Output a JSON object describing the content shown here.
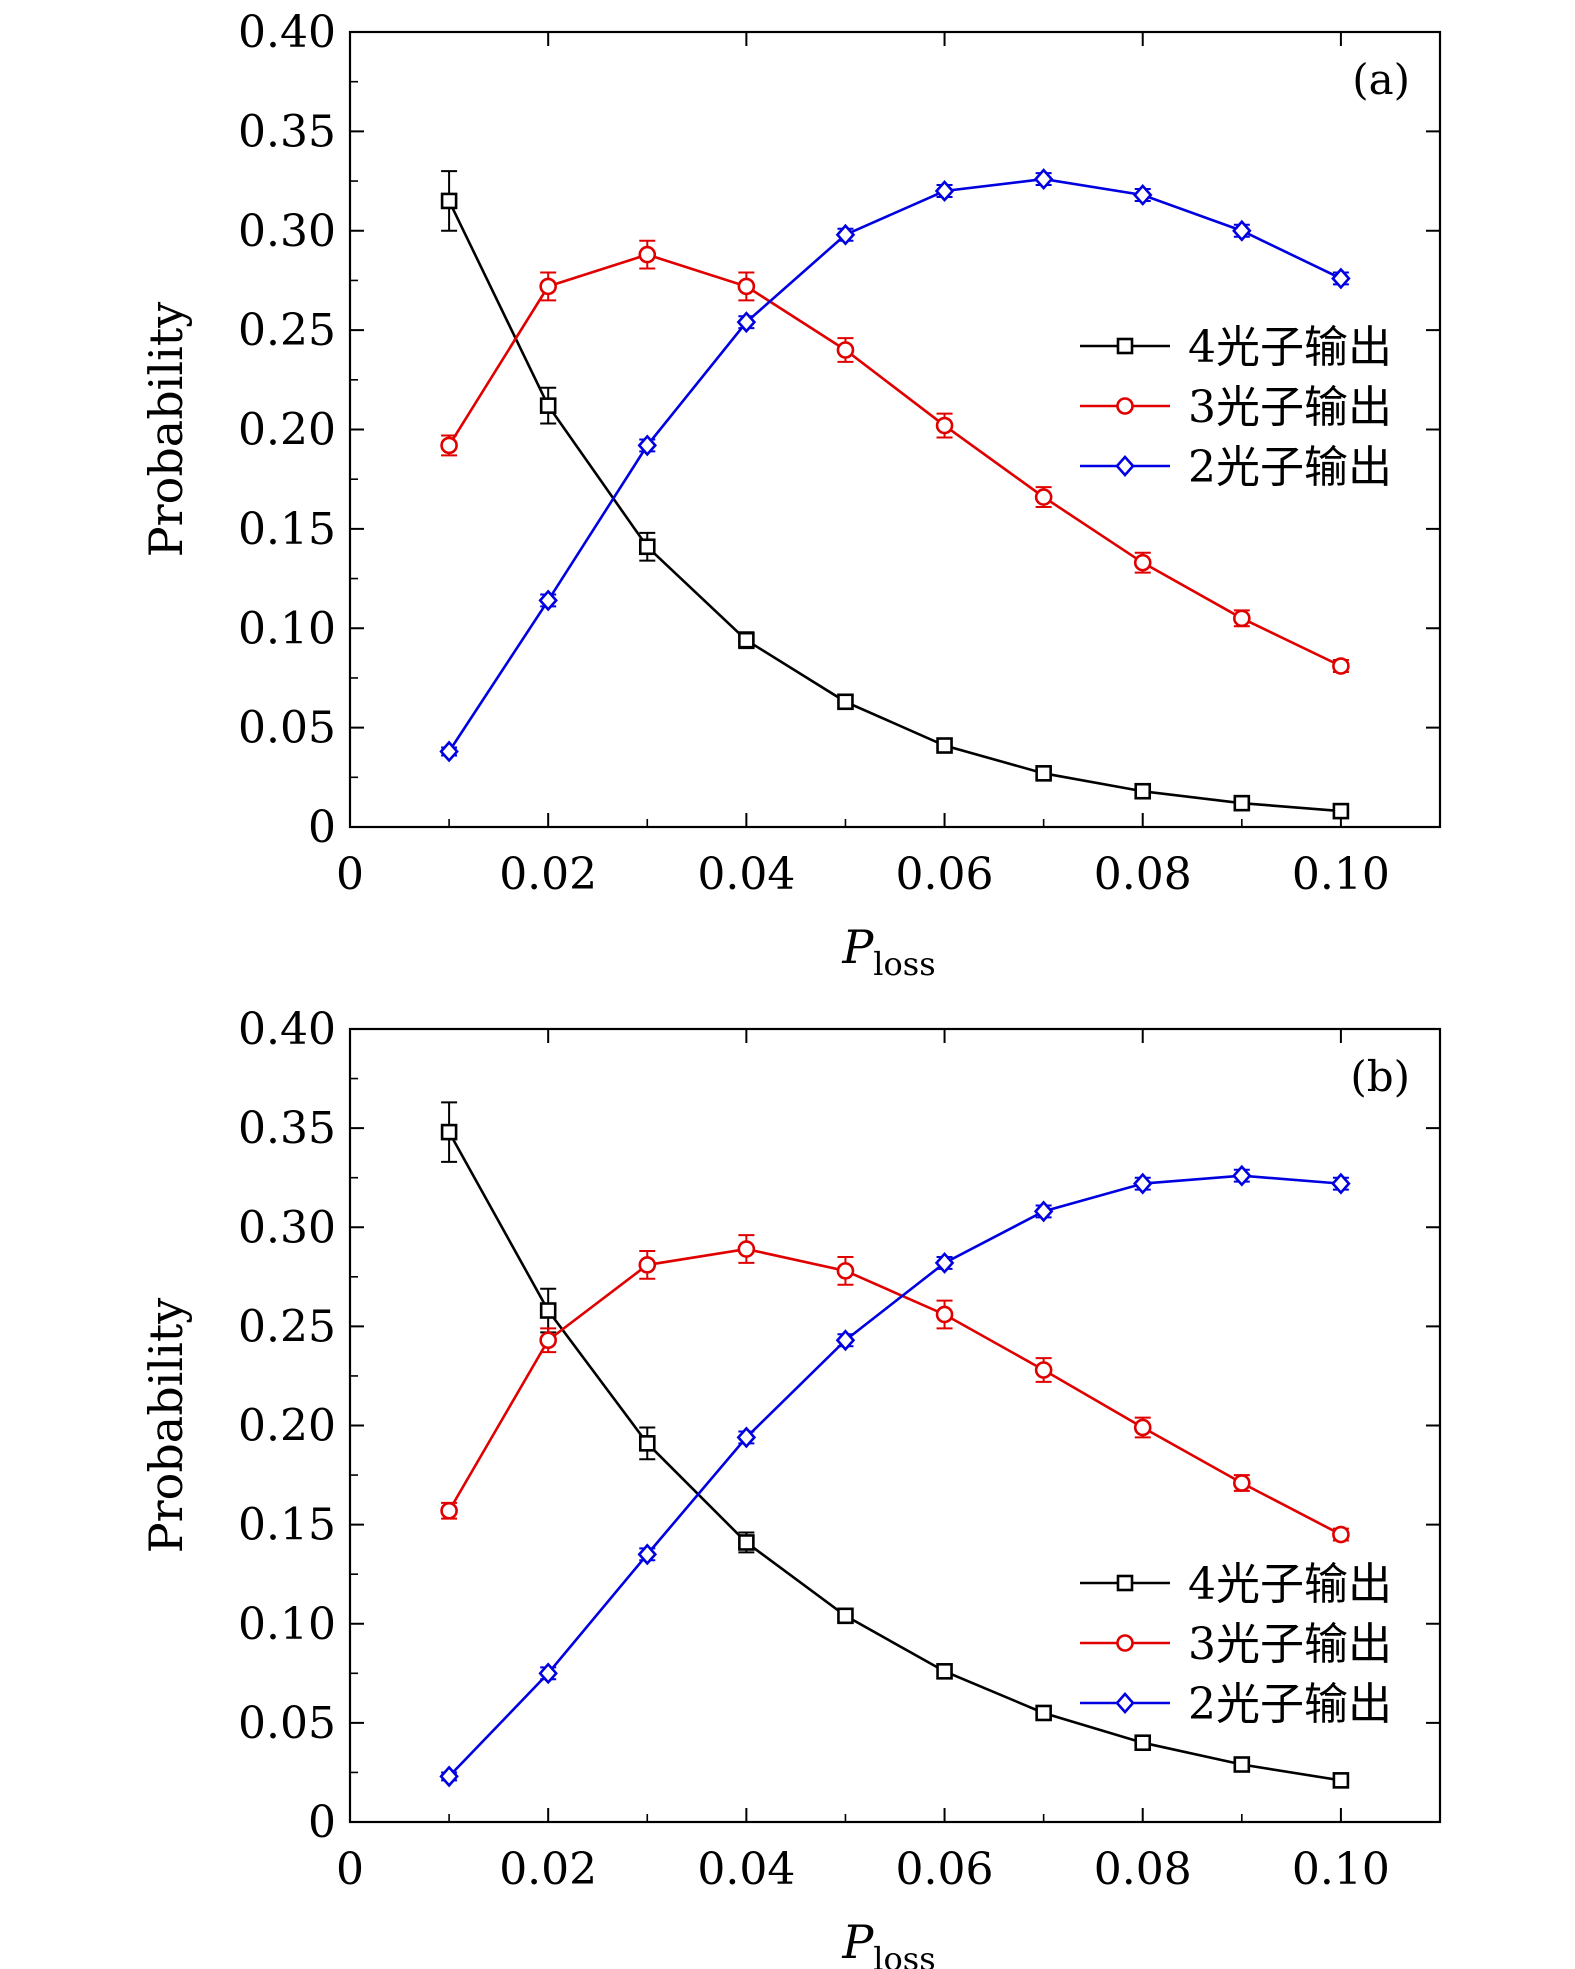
{
  "chart_data": [
    {
      "type": "line",
      "panel_label": "(a)",
      "xlabel_main": "P",
      "xlabel_sub": "loss",
      "ylabel": "Probability",
      "xlim": [
        0,
        0.11
      ],
      "ylim": [
        0,
        0.4
      ],
      "x_ticks": [
        0,
        0.02,
        0.04,
        0.06,
        0.08,
        0.1
      ],
      "x_tick_labels": [
        "0",
        "0.02",
        "0.04",
        "0.06",
        "0.08",
        "0.10"
      ],
      "y_ticks": [
        0,
        0.05,
        0.1,
        0.15,
        0.2,
        0.25,
        0.3,
        0.35,
        0.4
      ],
      "y_tick_labels": [
        "0",
        "0.05",
        "0.10",
        "0.15",
        "0.20",
        "0.25",
        "0.30",
        "0.35",
        "0.40"
      ],
      "legend_position": "right-middle",
      "x": [
        0.01,
        0.02,
        0.03,
        0.04,
        0.05,
        0.06,
        0.07,
        0.08,
        0.09,
        0.1
      ],
      "series": [
        {
          "name": "4光子输出",
          "color": "#000000",
          "marker": "square",
          "values": [
            0.315,
            0.212,
            0.141,
            0.094,
            0.063,
            0.041,
            0.027,
            0.018,
            0.012,
            0.008
          ],
          "errors": [
            0.015,
            0.009,
            0.007,
            0.004,
            0.002,
            0.002,
            0.002,
            0.002,
            0.002,
            0.002
          ]
        },
        {
          "name": "3光子输出",
          "color": "#e00000",
          "marker": "circle",
          "values": [
            0.192,
            0.272,
            0.288,
            0.272,
            0.24,
            0.202,
            0.166,
            0.133,
            0.105,
            0.081
          ],
          "errors": [
            0.005,
            0.007,
            0.007,
            0.007,
            0.006,
            0.006,
            0.005,
            0.005,
            0.004,
            0.003
          ]
        },
        {
          "name": "2光子输出",
          "color": "#0000e0",
          "marker": "diamond",
          "values": [
            0.038,
            0.114,
            0.192,
            0.254,
            0.298,
            0.32,
            0.326,
            0.318,
            0.3,
            0.276
          ],
          "errors": [
            0.002,
            0.003,
            0.003,
            0.003,
            0.003,
            0.003,
            0.003,
            0.003,
            0.003,
            0.003
          ]
        }
      ]
    },
    {
      "type": "line",
      "panel_label": "(b)",
      "xlabel_main": "P",
      "xlabel_sub": "loss",
      "ylabel": "Probability",
      "xlim": [
        0,
        0.11
      ],
      "ylim": [
        0,
        0.4
      ],
      "x_ticks": [
        0,
        0.02,
        0.04,
        0.06,
        0.08,
        0.1
      ],
      "x_tick_labels": [
        "0",
        "0.02",
        "0.04",
        "0.06",
        "0.08",
        "0.10"
      ],
      "y_ticks": [
        0,
        0.05,
        0.1,
        0.15,
        0.2,
        0.25,
        0.3,
        0.35,
        0.4
      ],
      "y_tick_labels": [
        "0",
        "0.05",
        "0.10",
        "0.15",
        "0.20",
        "0.25",
        "0.30",
        "0.35",
        "0.40"
      ],
      "legend_position": "bottom-right",
      "x": [
        0.01,
        0.02,
        0.03,
        0.04,
        0.05,
        0.06,
        0.07,
        0.08,
        0.09,
        0.1
      ],
      "series": [
        {
          "name": "4光子输出",
          "color": "#000000",
          "marker": "square",
          "values": [
            0.348,
            0.258,
            0.191,
            0.141,
            0.104,
            0.076,
            0.055,
            0.04,
            0.029,
            0.021
          ],
          "errors": [
            0.015,
            0.011,
            0.008,
            0.005,
            0.003,
            0.002,
            0.002,
            0.002,
            0.002,
            0.002
          ]
        },
        {
          "name": "3光子输出",
          "color": "#e00000",
          "marker": "circle",
          "values": [
            0.157,
            0.243,
            0.281,
            0.289,
            0.278,
            0.256,
            0.228,
            0.199,
            0.171,
            0.145
          ],
          "errors": [
            0.004,
            0.006,
            0.007,
            0.007,
            0.007,
            0.007,
            0.006,
            0.005,
            0.004,
            0.003
          ]
        },
        {
          "name": "2光子输出",
          "color": "#0000e0",
          "marker": "diamond",
          "values": [
            0.023,
            0.075,
            0.135,
            0.194,
            0.243,
            0.282,
            0.308,
            0.322,
            0.326,
            0.322
          ],
          "errors": [
            0.002,
            0.003,
            0.003,
            0.003,
            0.003,
            0.003,
            0.003,
            0.003,
            0.003,
            0.003
          ]
        }
      ]
    }
  ]
}
